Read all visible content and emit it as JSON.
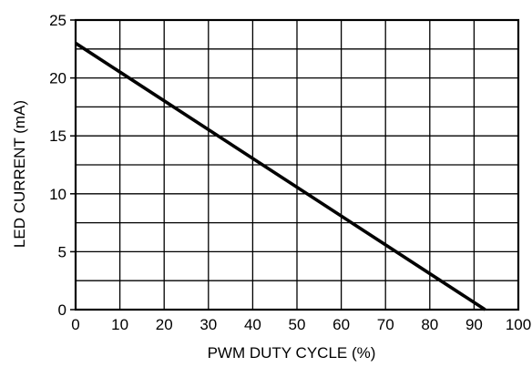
{
  "chart_data": {
    "type": "line",
    "title": "",
    "xlabel": "PWM DUTY CYCLE (%)",
    "ylabel": "LED CURRENT (mA)",
    "xlim": [
      0,
      100
    ],
    "ylim": [
      0,
      25
    ],
    "x_ticks": [
      0,
      10,
      20,
      30,
      40,
      50,
      60,
      70,
      80,
      90,
      100
    ],
    "y_ticks": [
      0,
      5,
      10,
      15,
      20,
      25
    ],
    "x_tick_labels": [
      "0",
      "10",
      "20",
      "30",
      "40",
      "50",
      "60",
      "70",
      "80",
      "90",
      "100"
    ],
    "y_tick_labels": [
      "0",
      "5",
      "10",
      "15",
      "20",
      "25"
    ],
    "x_grid": [
      0,
      10,
      20,
      30,
      40,
      50,
      60,
      70,
      80,
      90,
      100
    ],
    "y_grid": [
      0,
      2.5,
      5,
      7.5,
      10,
      12.5,
      15,
      17.5,
      20,
      22.5,
      25
    ],
    "grid": true,
    "legend": "none",
    "series": [
      {
        "x": [
          0,
          92.5
        ],
        "y": [
          23,
          0
        ],
        "color": "#000000"
      }
    ]
  }
}
